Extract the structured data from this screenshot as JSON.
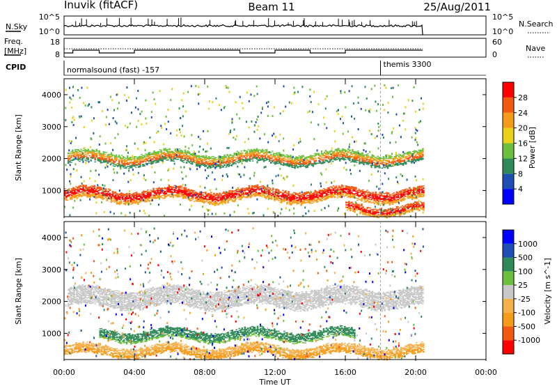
{
  "header": {
    "station": "Inuvik (fitACF)",
    "beam": "Beam 11",
    "date": "25/Aug/2011"
  },
  "noise_panel": {
    "left_label": "N.Sky",
    "right_label": "N.Search",
    "left_ticks": [
      "10^5",
      "10^0"
    ],
    "right_ticks": [
      "10^5",
      "10^0"
    ]
  },
  "freq_panel": {
    "left_label_1": "Freq.",
    "left_label_2": "[MHz]",
    "right_label": "Nave",
    "left_ticks": [
      "18",
      "8"
    ],
    "right_ticks": [
      "60",
      "0"
    ]
  },
  "cpid": {
    "label": "CPID",
    "entries": [
      {
        "name": "normalsound (fast) -157",
        "start_hour": 0
      },
      {
        "name": "themis 3300",
        "start_hour": 18
      }
    ]
  },
  "x_axis": {
    "label": "Time UT",
    "ticks": [
      "00:00",
      "04:00",
      "08:00",
      "12:00",
      "16:00",
      "20:00",
      "00:00"
    ]
  },
  "chart_data": [
    {
      "type": "heatmap",
      "name": "power",
      "ylabel": "Slant Range [km]",
      "yticks": [
        "1000",
        "2000",
        "3000",
        "4000"
      ],
      "ylim": [
        180,
        4500
      ],
      "xlim": [
        0,
        24
      ],
      "colorbar": {
        "label": "Power [dB]",
        "ticks": [
          "28",
          "24",
          "20",
          "16",
          "12",
          "8",
          "4"
        ],
        "colors": [
          "#0000ff",
          "#1e4db4",
          "#2e8b57",
          "#6bbf3a",
          "#e8d21a",
          "#f59b1a",
          "#f25a12",
          "#ff0000"
        ]
      },
      "features": [
        {
          "start": 0.0,
          "end": 20.4,
          "range_center": 850,
          "range_width": 350,
          "level": "strong"
        },
        {
          "start": 0.2,
          "end": 20.4,
          "range_center": 2000,
          "range_width": 350,
          "level": "medium"
        },
        {
          "start": 16.0,
          "end": 20.4,
          "range_center": 400,
          "range_width": 250,
          "level": "strong"
        }
      ]
    },
    {
      "type": "heatmap",
      "name": "velocity",
      "ylabel": "Slant Range [km]",
      "yticks": [
        "1000",
        "2000",
        "3000",
        "4000"
      ],
      "ylim": [
        180,
        4500
      ],
      "xlim": [
        0,
        24
      ],
      "colorbar": {
        "label": "Velocity [m s^-1]",
        "ticks": [
          "1000",
          "500",
          "100",
          "25",
          "-25",
          "-100",
          "-500",
          "-1000"
        ],
        "colors": [
          "#ff0000",
          "#f25a12",
          "#f59b1a",
          "#f5b04a",
          "#c8c8c8",
          "#6bbf3a",
          "#2e8b57",
          "#1e4db4",
          "#0000ff"
        ]
      },
      "features": [
        {
          "start": 0.2,
          "end": 20.4,
          "range_center": 2100,
          "range_width": 550,
          "level": "ground"
        },
        {
          "start": 2.0,
          "end": 16.5,
          "range_center": 950,
          "range_width": 300,
          "level": "positive"
        },
        {
          "start": 0.0,
          "end": 20.4,
          "range_center": 450,
          "range_width": 300,
          "level": "negative"
        }
      ]
    }
  ]
}
